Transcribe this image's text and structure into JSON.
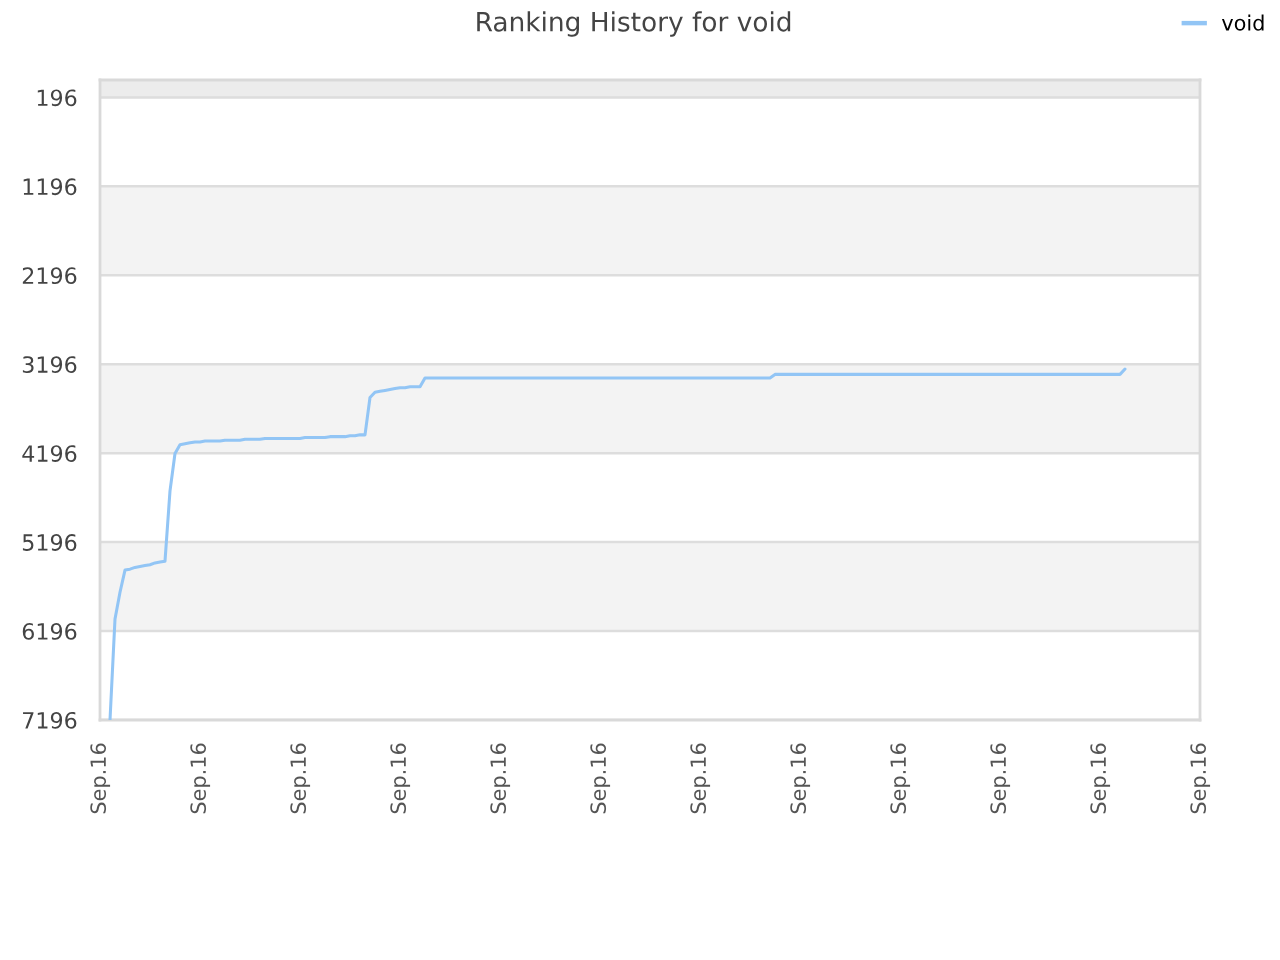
{
  "chart_data": {
    "type": "line",
    "title": "Ranking History for void",
    "categories": [
      "Sep.16",
      null,
      null,
      null,
      null,
      null,
      null,
      null,
      null,
      null,
      null,
      null,
      null,
      null,
      null,
      null,
      null,
      null,
      null,
      null,
      "Sep.16",
      null,
      null,
      null,
      null,
      null,
      null,
      null,
      null,
      null,
      null,
      null,
      null,
      null,
      null,
      null,
      null,
      null,
      null,
      null,
      "Sep.16",
      null,
      null,
      null,
      null,
      null,
      null,
      null,
      null,
      null,
      null,
      null,
      null,
      null,
      null,
      null,
      null,
      null,
      null,
      null,
      "Sep.16",
      null,
      null,
      null,
      null,
      null,
      null,
      null,
      null,
      null,
      null,
      null,
      null,
      null,
      null,
      null,
      null,
      null,
      null,
      null,
      "Sep.16",
      null,
      null,
      null,
      null,
      null,
      null,
      null,
      null,
      null,
      null,
      null,
      null,
      null,
      null,
      null,
      null,
      null,
      null,
      null,
      "Sep.16",
      null,
      null,
      null,
      null,
      null,
      null,
      null,
      null,
      null,
      null,
      null,
      null,
      null,
      null,
      null,
      null,
      null,
      null,
      null,
      "Sep.16",
      null,
      null,
      null,
      null,
      null,
      null,
      null,
      null,
      null,
      null,
      null,
      null,
      null,
      null,
      null,
      null,
      null,
      null,
      null,
      "Sep.16",
      null,
      null,
      null,
      null,
      null,
      null,
      null,
      null,
      null,
      null,
      null,
      null,
      null,
      null,
      null,
      null,
      null,
      null,
      null,
      "Sep.16",
      null,
      null,
      null,
      null,
      null,
      null,
      null,
      null,
      null,
      null,
      null,
      null,
      null,
      null,
      null,
      null,
      null,
      null,
      null,
      "Sep.16",
      null,
      null,
      null,
      null,
      null,
      null,
      null,
      null,
      null,
      null,
      null,
      null,
      null,
      null,
      null,
      null,
      null,
      null,
      null,
      "Sep.16",
      null,
      null,
      null,
      null,
      null,
      null,
      null,
      null,
      null,
      null,
      null,
      null,
      null,
      null,
      null,
      null,
      null,
      null,
      null,
      "Sep.16"
    ],
    "series": [
      {
        "name": "void",
        "color": "#92c5f5",
        "values": [
          null,
          null,
          7196,
          6060,
          5760,
          5510,
          5500,
          5480,
          5470,
          5460,
          5450,
          5430,
          5420,
          5410,
          4620,
          4200,
          4100,
          4090,
          4080,
          4070,
          4070,
          4060,
          4060,
          4060,
          4060,
          4050,
          4050,
          4050,
          4050,
          4040,
          4040,
          4040,
          4040,
          4030,
          4030,
          4030,
          4030,
          4030,
          4030,
          4030,
          4030,
          4020,
          4020,
          4020,
          4020,
          4020,
          4010,
          4010,
          4010,
          4010,
          4000,
          4000,
          3990,
          3990,
          3570,
          3510,
          3500,
          3490,
          3480,
          3470,
          3460,
          3460,
          3450,
          3450,
          3450,
          3350,
          3350,
          3350,
          3350,
          3350,
          3350,
          3350,
          3350,
          3350,
          3350,
          3350,
          3350,
          3350,
          3350,
          3350,
          3350,
          3350,
          3350,
          3350,
          3350,
          3350,
          3350,
          3350,
          3350,
          3350,
          3350,
          3350,
          3350,
          3350,
          3350,
          3350,
          3350,
          3350,
          3350,
          3350,
          3350,
          3350,
          3350,
          3350,
          3350,
          3350,
          3350,
          3350,
          3350,
          3350,
          3350,
          3350,
          3350,
          3350,
          3350,
          3350,
          3350,
          3350,
          3350,
          3350,
          3350,
          3350,
          3350,
          3350,
          3350,
          3350,
          3350,
          3350,
          3350,
          3350,
          3350,
          3350,
          3350,
          3350,
          3350,
          3310,
          3310,
          3310,
          3310,
          3310,
          3310,
          3310,
          3310,
          3310,
          3310,
          3310,
          3310,
          3310,
          3310,
          3310,
          3310,
          3310,
          3310,
          3310,
          3310,
          3310,
          3310,
          3310,
          3310,
          3310,
          3310,
          3310,
          3310,
          3310,
          3310,
          3310,
          3310,
          3310,
          3310,
          3310,
          3310,
          3310,
          3310,
          3310,
          3310,
          3310,
          3310,
          3310,
          3310,
          3310,
          3310,
          3310,
          3310,
          3310,
          3310,
          3310,
          3310,
          3310,
          3310,
          3310,
          3310,
          3310,
          3310,
          3310,
          3310,
          3310,
          3310,
          3310,
          3310,
          3310,
          3310,
          3310,
          3310,
          3310,
          3310,
          3250,
          null,
          null,
          null,
          null,
          null,
          null,
          null,
          null,
          null,
          null,
          null,
          null,
          null,
          null,
          null
        ]
      }
    ],
    "ylim": [
      7196,
      0
    ],
    "yticks": [
      196,
      1196,
      2196,
      3196,
      4196,
      5196,
      6196,
      7196
    ],
    "bands": [
      {
        "axis": "y",
        "from": 0,
        "to": 196,
        "color": "#ececec"
      },
      {
        "axis": "y",
        "from": 1196,
        "to": 2196,
        "color": "#f3f3f3"
      },
      {
        "axis": "y",
        "from": 3196,
        "to": 4196,
        "color": "#f3f3f3"
      },
      {
        "axis": "y",
        "from": 5196,
        "to": 6196,
        "color": "#f3f3f3"
      }
    ],
    "grid": "y",
    "legend": "top right",
    "marker": "none",
    "line_style": "solid"
  }
}
